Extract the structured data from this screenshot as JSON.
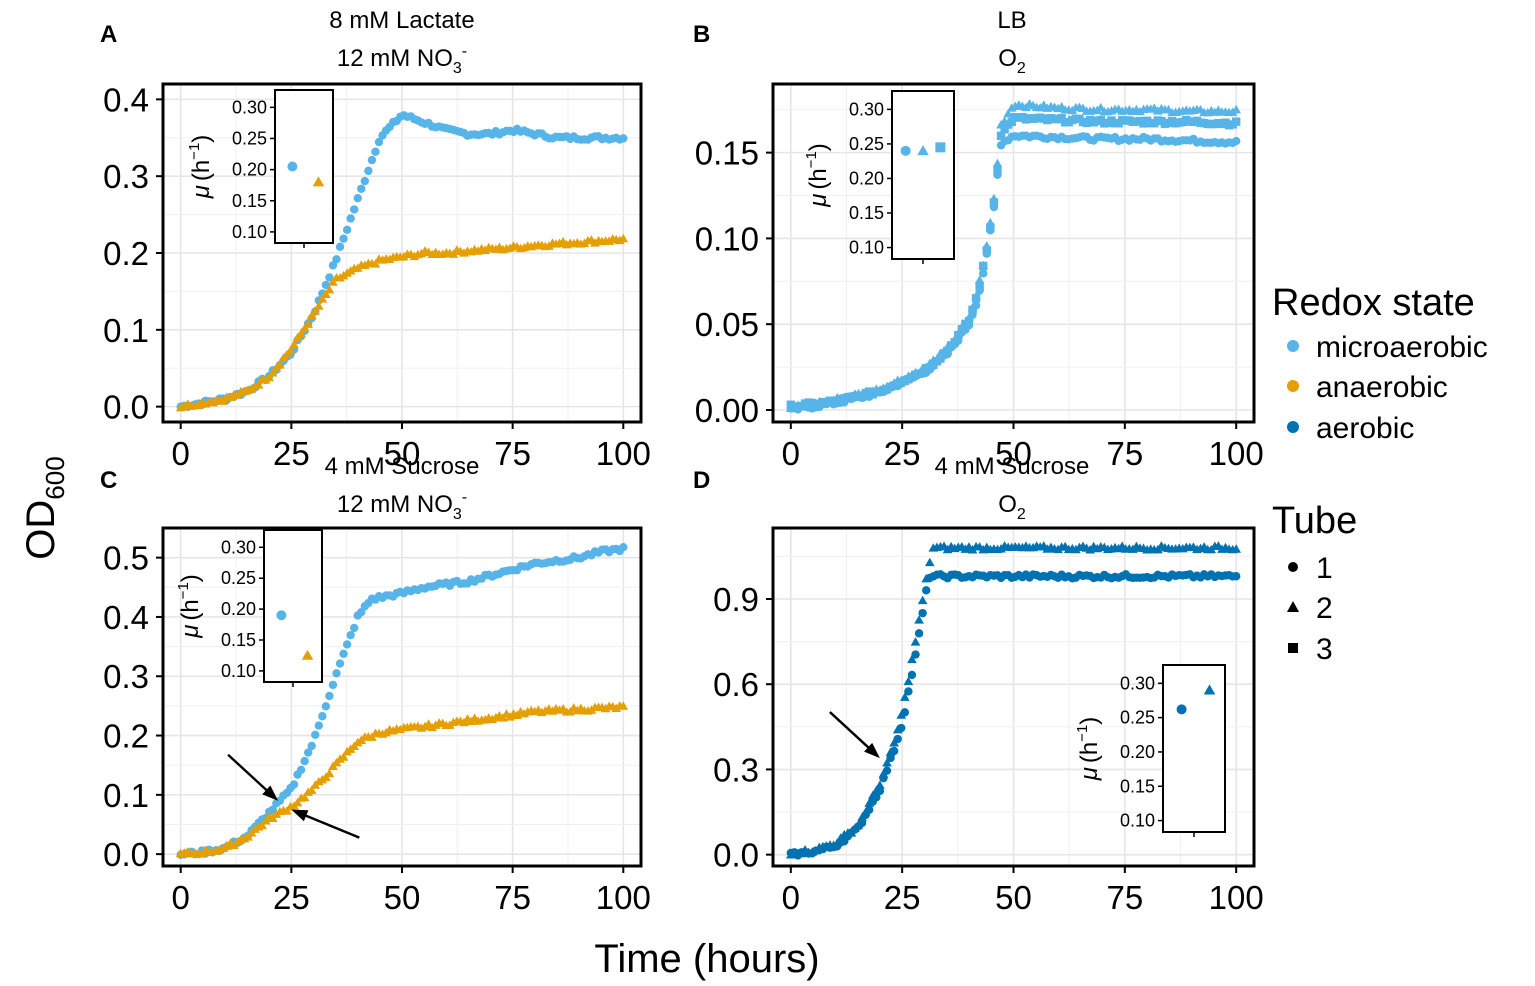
{
  "figure": {
    "ylabel_main": "OD",
    "ylabel_sub": "600",
    "xlabel": "Time (hours)",
    "x_ticks": [
      0,
      25,
      50,
      75,
      100
    ],
    "inset_ylabel_mu": "μ",
    "inset_ylabel_unit": "(h",
    "inset_ylabel_exp": "−1",
    "inset_ylabel_close": ")",
    "inset_y_ticks": [
      0.1,
      0.15,
      0.2,
      0.25,
      0.3
    ]
  },
  "legend": {
    "redox_title": "Redox state",
    "redox_items": [
      {
        "label": "microaerobic",
        "color": "#56B4E9"
      },
      {
        "label": "anaerobic",
        "color": "#E69F00"
      },
      {
        "label": "aerobic",
        "color": "#0072B2"
      }
    ],
    "tube_title": "Tube",
    "tube_items": [
      {
        "label": "1",
        "shape": "circle"
      },
      {
        "label": "2",
        "shape": "triangle"
      },
      {
        "label": "3",
        "shape": "square"
      }
    ]
  },
  "chart_data": [
    {
      "panel": "A",
      "type": "scatter",
      "title_line1": "8 mM Lactate",
      "title_line2_pre": "12 mM NO",
      "title_line2_sub": "3",
      "title_line2_sup": "-",
      "xlim": [
        0,
        100
      ],
      "ylim": [
        -0.02,
        0.42
      ],
      "y_ticks": [
        "0.0",
        "0.1",
        "0.2",
        "0.3",
        "0.4"
      ],
      "y_tick_values": [
        0,
        0.1,
        0.2,
        0.3,
        0.4
      ],
      "series": [
        {
          "name": "microaerobic",
          "tube": "1",
          "points": [
            [
              0,
              0
            ],
            [
              5,
              0.005
            ],
            [
              10,
              0.01
            ],
            [
              15,
              0.02
            ],
            [
              20,
              0.04
            ],
            [
              25,
              0.07
            ],
            [
              30,
              0.12
            ],
            [
              35,
              0.19
            ],
            [
              40,
              0.27
            ],
            [
              45,
              0.35
            ],
            [
              50,
              0.38
            ],
            [
              55,
              0.37
            ],
            [
              60,
              0.36
            ],
            [
              65,
              0.355
            ],
            [
              70,
              0.355
            ],
            [
              75,
              0.36
            ],
            [
              80,
              0.355
            ],
            [
              85,
              0.35
            ],
            [
              90,
              0.35
            ],
            [
              95,
              0.35
            ],
            [
              100,
              0.35
            ]
          ]
        },
        {
          "name": "anaerobic",
          "tube": "2",
          "points": [
            [
              0,
              0
            ],
            [
              5,
              0.005
            ],
            [
              10,
              0.01
            ],
            [
              15,
              0.02
            ],
            [
              20,
              0.04
            ],
            [
              25,
              0.075
            ],
            [
              30,
              0.12
            ],
            [
              35,
              0.165
            ],
            [
              40,
              0.18
            ],
            [
              45,
              0.19
            ],
            [
              50,
              0.195
            ],
            [
              55,
              0.2
            ],
            [
              60,
              0.2
            ],
            [
              65,
              0.203
            ],
            [
              70,
              0.205
            ],
            [
              75,
              0.207
            ],
            [
              80,
              0.21
            ],
            [
              85,
              0.212
            ],
            [
              90,
              0.214
            ],
            [
              95,
              0.216
            ],
            [
              100,
              0.218
            ]
          ]
        }
      ],
      "inset": {
        "points": [
          {
            "name": "microaerobic",
            "tube": "1",
            "value": 0.205
          },
          {
            "name": "anaerobic",
            "tube": "2",
            "value": 0.18
          }
        ]
      }
    },
    {
      "panel": "B",
      "type": "scatter",
      "title_line1": "LB",
      "title_line2_pre": "O",
      "title_line2_sub": "2",
      "title_line2_sup": "",
      "xlim": [
        0,
        100
      ],
      "ylim": [
        -0.007,
        0.19
      ],
      "y_ticks": [
        "0.00",
        "0.05",
        "0.10",
        "0.15"
      ],
      "y_tick_values": [
        0,
        0.05,
        0.1,
        0.15
      ],
      "series": [
        {
          "name": "microaerobic",
          "tube": "1",
          "points": [
            [
              0,
              0
            ],
            [
              10,
              0.004
            ],
            [
              20,
              0.01
            ],
            [
              30,
              0.022
            ],
            [
              35,
              0.032
            ],
            [
              40,
              0.05
            ],
            [
              42,
              0.065
            ],
            [
              44,
              0.09
            ],
            [
              46,
              0.125
            ],
            [
              47,
              0.155
            ],
            [
              50,
              0.16
            ],
            [
              60,
              0.159
            ],
            [
              70,
              0.158
            ],
            [
              80,
              0.158
            ],
            [
              90,
              0.157
            ],
            [
              100,
              0.156
            ]
          ]
        },
        {
          "name": "microaerobic",
          "tube": "2",
          "points": [
            [
              0,
              0.001
            ],
            [
              10,
              0.006
            ],
            [
              20,
              0.012
            ],
            [
              30,
              0.024
            ],
            [
              35,
              0.035
            ],
            [
              40,
              0.053
            ],
            [
              42,
              0.07
            ],
            [
              44,
              0.095
            ],
            [
              46,
              0.13
            ],
            [
              47,
              0.165
            ],
            [
              50,
              0.178
            ],
            [
              60,
              0.176
            ],
            [
              70,
              0.175
            ],
            [
              80,
              0.175
            ],
            [
              90,
              0.174
            ],
            [
              100,
              0.174
            ]
          ]
        },
        {
          "name": "microaerobic",
          "tube": "3",
          "points": [
            [
              0,
              0.002
            ],
            [
              10,
              0.005
            ],
            [
              20,
              0.011
            ],
            [
              30,
              0.023
            ],
            [
              35,
              0.034
            ],
            [
              40,
              0.052
            ],
            [
              42,
              0.068
            ],
            [
              44,
              0.093
            ],
            [
              46,
              0.128
            ],
            [
              47,
              0.16
            ],
            [
              50,
              0.17
            ],
            [
              60,
              0.169
            ],
            [
              70,
              0.168
            ],
            [
              80,
              0.168
            ],
            [
              90,
              0.168
            ],
            [
              100,
              0.167
            ]
          ]
        }
      ],
      "inset": {
        "points": [
          {
            "name": "microaerobic",
            "tube": "1",
            "value": 0.24
          },
          {
            "name": "microaerobic",
            "tube": "2",
            "value": 0.24
          },
          {
            "name": "microaerobic",
            "tube": "3",
            "value": 0.245
          }
        ]
      }
    },
    {
      "panel": "C",
      "type": "scatter",
      "title_line1": "4 mM Sucrose",
      "title_line2_pre": "12 mM NO",
      "title_line2_sub": "3",
      "title_line2_sup": "-",
      "xlim": [
        0,
        100
      ],
      "ylim": [
        -0.02,
        0.55
      ],
      "y_ticks": [
        "0.0",
        "0.1",
        "0.2",
        "0.3",
        "0.4",
        "0.5"
      ],
      "y_tick_values": [
        0,
        0.1,
        0.2,
        0.3,
        0.4,
        0.5
      ],
      "series": [
        {
          "name": "microaerobic",
          "tube": "1",
          "points": [
            [
              0,
              0
            ],
            [
              5,
              0.003
            ],
            [
              10,
              0.01
            ],
            [
              15,
              0.03
            ],
            [
              20,
              0.07
            ],
            [
              25,
              0.11
            ],
            [
              30,
              0.19
            ],
            [
              35,
              0.3
            ],
            [
              40,
              0.4
            ],
            [
              43,
              0.43
            ],
            [
              50,
              0.44
            ],
            [
              55,
              0.45
            ],
            [
              60,
              0.455
            ],
            [
              65,
              0.46
            ],
            [
              70,
              0.47
            ],
            [
              75,
              0.48
            ],
            [
              80,
              0.49
            ],
            [
              85,
              0.495
            ],
            [
              90,
              0.5
            ],
            [
              95,
              0.51
            ],
            [
              100,
              0.515
            ]
          ]
        },
        {
          "name": "anaerobic",
          "tube": "2",
          "points": [
            [
              0,
              0
            ],
            [
              5,
              0.003
            ],
            [
              10,
              0.01
            ],
            [
              15,
              0.03
            ],
            [
              20,
              0.06
            ],
            [
              25,
              0.08
            ],
            [
              30,
              0.11
            ],
            [
              35,
              0.15
            ],
            [
              40,
              0.19
            ],
            [
              45,
              0.205
            ],
            [
              50,
              0.21
            ],
            [
              55,
              0.215
            ],
            [
              60,
              0.22
            ],
            [
              65,
              0.225
            ],
            [
              70,
              0.23
            ],
            [
              75,
              0.235
            ],
            [
              80,
              0.24
            ],
            [
              85,
              0.242
            ],
            [
              90,
              0.244
            ],
            [
              95,
              0.246
            ],
            [
              100,
              0.248
            ]
          ]
        }
      ],
      "inset": {
        "points": [
          {
            "name": "microaerobic",
            "tube": "1",
            "value": 0.19
          },
          {
            "name": "anaerobic",
            "tube": "2",
            "value": 0.125
          }
        ]
      },
      "arrows": [
        [
          22,
          0.09
        ],
        [
          25,
          0.075
        ]
      ]
    },
    {
      "panel": "D",
      "type": "scatter",
      "title_line1": "4 mM Sucrose",
      "title_line2_pre": "O",
      "title_line2_sub": "2",
      "title_line2_sup": "",
      "xlim": [
        0,
        100
      ],
      "ylim": [
        -0.04,
        1.15
      ],
      "y_ticks": [
        "0.0",
        "0.3",
        "0.6",
        "0.9"
      ],
      "y_tick_values": [
        0,
        0.3,
        0.6,
        0.9
      ],
      "series": [
        {
          "name": "aerobic",
          "tube": "1",
          "points": [
            [
              0,
              0
            ],
            [
              5,
              0.01
            ],
            [
              10,
              0.03
            ],
            [
              15,
              0.09
            ],
            [
              20,
              0.23
            ],
            [
              23,
              0.36
            ],
            [
              25,
              0.46
            ],
            [
              28,
              0.7
            ],
            [
              31,
              0.98
            ],
            [
              35,
              0.98
            ],
            [
              50,
              0.98
            ],
            [
              75,
              0.98
            ],
            [
              100,
              0.98
            ]
          ]
        },
        {
          "name": "aerobic",
          "tube": "2",
          "points": [
            [
              0,
              0.005
            ],
            [
              5,
              0.015
            ],
            [
              10,
              0.04
            ],
            [
              15,
              0.1
            ],
            [
              20,
              0.25
            ],
            [
              23,
              0.38
            ],
            [
              25,
              0.5
            ],
            [
              28,
              0.75
            ],
            [
              31,
              1.02
            ],
            [
              32,
              1.08
            ],
            [
              50,
              1.08
            ],
            [
              75,
              1.08
            ],
            [
              100,
              1.08
            ]
          ]
        }
      ],
      "inset": {
        "points": [
          {
            "name": "aerobic",
            "tube": "1",
            "value": 0.262
          },
          {
            "name": "aerobic",
            "tube": "2",
            "value": 0.29
          }
        ]
      },
      "arrows": [
        [
          20,
          0.34
        ]
      ]
    }
  ]
}
